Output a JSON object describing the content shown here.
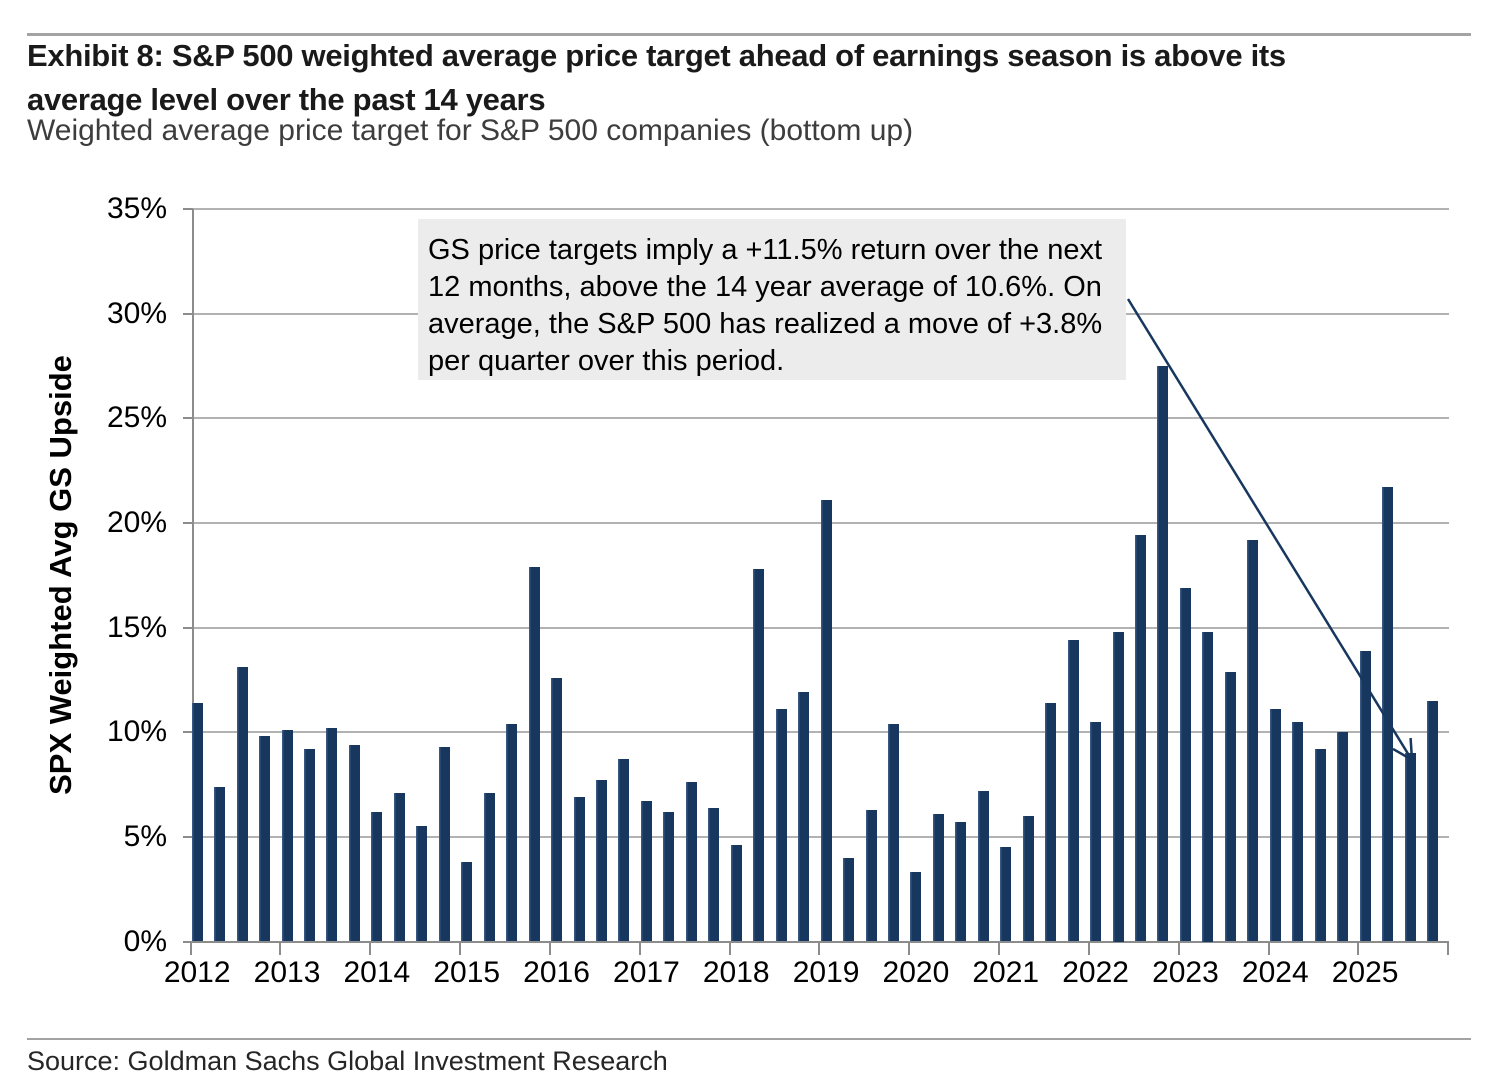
{
  "header": {
    "title_line1": "Exhibit 8: S&P 500 weighted average price target ahead of earnings season is above its",
    "title_line2": "average level over the past 14 years",
    "subtitle": "Weighted average price target for S&P 500 companies (bottom up)"
  },
  "chart_data": {
    "type": "bar",
    "title": "",
    "xlabel": "",
    "ylabel": "SPX Weighted Avg GS Upside",
    "ylim": [
      0,
      35
    ],
    "ytick_step": 5,
    "ytick_labels": [
      "0%",
      "5%",
      "10%",
      "15%",
      "20%",
      "25%",
      "30%",
      "35%"
    ],
    "grid": "horizontal",
    "legend_position": "none",
    "bar_color": "#17375e",
    "years": [
      "2012",
      "2013",
      "2014",
      "2015",
      "2016",
      "2017",
      "2018",
      "2019",
      "2020",
      "2021",
      "2022",
      "2023",
      "2024",
      "2025"
    ],
    "quarters_per_year": 4,
    "series": [
      {
        "name": "SPX Weighted Avg GS Upside (%)",
        "values": [
          11.4,
          7.4,
          13.1,
          9.8,
          10.1,
          9.2,
          10.2,
          9.4,
          6.2,
          7.1,
          5.5,
          9.3,
          3.8,
          7.1,
          10.4,
          17.9,
          12.6,
          6.9,
          7.7,
          8.7,
          6.7,
          6.2,
          7.6,
          6.4,
          4.6,
          17.8,
          11.1,
          11.9,
          21.1,
          4.0,
          6.3,
          10.4,
          3.3,
          6.1,
          5.7,
          7.2,
          4.5,
          6.0,
          11.4,
          14.4,
          10.5,
          14.8,
          19.4,
          27.5,
          16.9,
          14.8,
          12.9,
          19.2,
          11.1,
          10.5,
          9.2,
          10.0,
          13.9,
          21.7,
          9.0,
          11.5
        ]
      }
    ],
    "annotation": "GS price targets imply a +11.5% return over the next 12 months, above the 14 year average of 10.6%. On average, the S&P 500 has realized a move of +3.8% per quarter over this period.",
    "annotation_arrow_target": "2025 Q4 bar (11.5%)"
  },
  "footer": {
    "source": "Source: Goldman Sachs Global Investment Research"
  }
}
